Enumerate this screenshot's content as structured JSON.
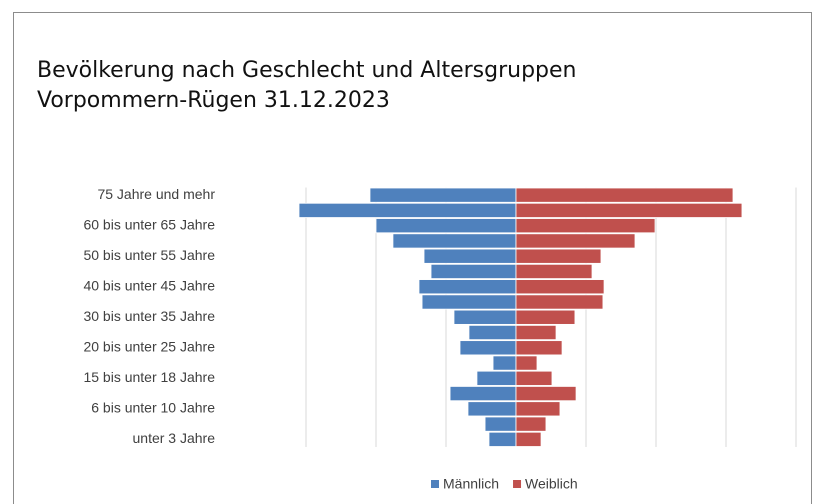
{
  "chart_data": {
    "type": "pyramid",
    "title": "Bevölkerung nach Geschlecht und Altersgruppen",
    "subtitle": "Vorpommern-Rügen 31.12.2023",
    "categories": [
      "75 Jahre und mehr",
      null,
      "60 bis unter 65 Jahre",
      null,
      "50 bis unter 55 Jahre",
      null,
      "40 bis unter 45 Jahre",
      null,
      "30 bis unter 35 Jahre",
      null,
      "20 bis unter 25 Jahre",
      null,
      "15 bis unter 18 Jahre",
      null,
      "6 bis unter 10 Jahre",
      null,
      "unter 3 Jahre"
    ],
    "series": [
      {
        "name": "Männlich",
        "color": "#4f81bd",
        "values": [
          -10430,
          -15500,
          -10000,
          -8790,
          -6570,
          -6070,
          -6930,
          -6710,
          -4430,
          -3360,
          -4000,
          -1640,
          -2790,
          -4710,
          -3430,
          -2210,
          -1930
        ]
      },
      {
        "name": "Weiblich",
        "color": "#c0504d",
        "values": [
          15500,
          16140,
          9930,
          8500,
          6070,
          5430,
          6290,
          6210,
          4210,
          2860,
          3290,
          1500,
          2570,
          4290,
          3140,
          2140,
          1790
        ]
      }
    ],
    "xlim": [
      -20000,
      20000
    ],
    "xticks": [
      -15000,
      -10000,
      -5000,
      0,
      5000,
      10000,
      15000,
      20000
    ],
    "grid": true,
    "legend": "bottom"
  }
}
